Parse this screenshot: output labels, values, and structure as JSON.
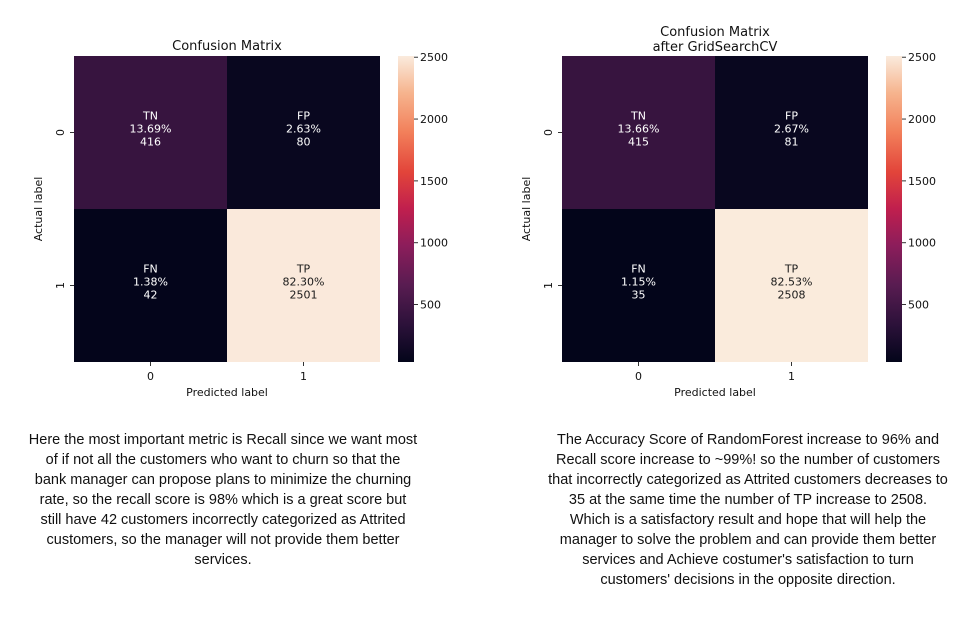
{
  "colors": {
    "dark": "#0b0724",
    "purple": "#3e1a3f",
    "cream": "#faebdd"
  },
  "chart_data": [
    {
      "type": "heatmap",
      "title": "Confusion Matrix",
      "xlabel": "Predicted label",
      "ylabel": "Actual label",
      "x_ticks": [
        "0",
        "1"
      ],
      "y_ticks": [
        "0",
        "1"
      ],
      "colorbar_ticks": [
        500,
        1000,
        1500,
        2000,
        2500
      ],
      "colorbar_range": [
        35,
        2510
      ],
      "cells": [
        {
          "row": 0,
          "col": 0,
          "name": "TN",
          "pct": "13.69%",
          "count": 416
        },
        {
          "row": 0,
          "col": 1,
          "name": "FP",
          "pct": "2.63%",
          "count": 80
        },
        {
          "row": 1,
          "col": 0,
          "name": "FN",
          "pct": "1.38%",
          "count": 42
        },
        {
          "row": 1,
          "col": 1,
          "name": "TP",
          "pct": "82.30%",
          "count": 2501
        }
      ]
    },
    {
      "type": "heatmap",
      "title": "Confusion Matrix\nafter GridSearchCV",
      "xlabel": "Predicted label",
      "ylabel": "Actual label",
      "x_ticks": [
        "0",
        "1"
      ],
      "y_ticks": [
        "0",
        "1"
      ],
      "colorbar_ticks": [
        500,
        1000,
        1500,
        2000,
        2500
      ],
      "colorbar_range": [
        35,
        2510
      ],
      "cells": [
        {
          "row": 0,
          "col": 0,
          "name": "TN",
          "pct": "13.66%",
          "count": 415
        },
        {
          "row": 0,
          "col": 1,
          "name": "FP",
          "pct": "2.67%",
          "count": 81
        },
        {
          "row": 1,
          "col": 0,
          "name": "FN",
          "pct": "1.15%",
          "count": 35
        },
        {
          "row": 1,
          "col": 1,
          "name": "TP",
          "pct": "82.53%",
          "count": 2508
        }
      ]
    }
  ],
  "captions": {
    "left": "Here the most important metric is Recall since we want most of if not all the customers who want to churn so that the bank manager can propose plans to minimize the churning rate, so the recall score is 98% which is a great score but still have 42 customers incorrectly categorized as Attrited customers, so the manager will not provide them better services.",
    "right": "The Accuracy Score of RandomForest increase to 96% and Recall score increase to ~99%! so the number of customers that incorrectly categorized as Attrited customers decreases to 35 at the same time the number of TP increase to 2508. Which is a satisfactory result and hope that will help the manager to solve the problem and can provide them better services and Achieve costumer's satisfaction to turn customers' decisions in the opposite direction."
  }
}
